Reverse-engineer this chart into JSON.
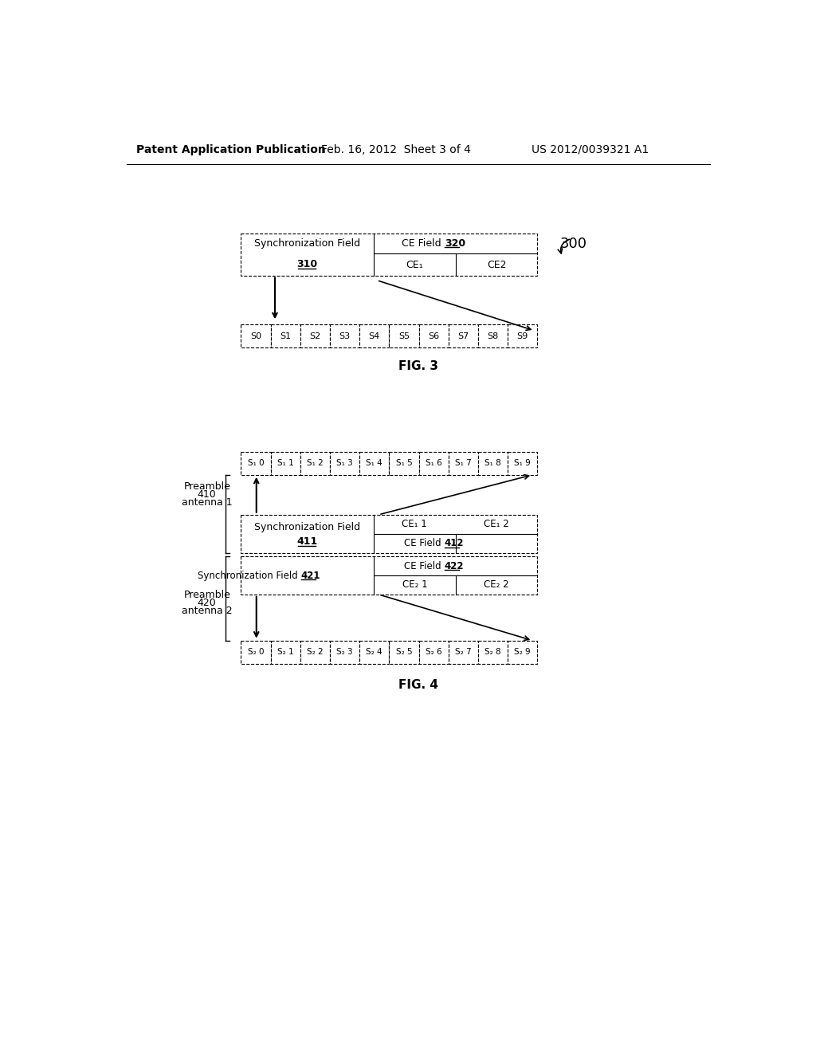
{
  "bg_color": "#ffffff",
  "header_text": "Patent Application Publication",
  "header_date": "Feb. 16, 2012  Sheet 3 of 4",
  "header_ref": "US 2012/0039321 A1",
  "fig3_label": "300",
  "fig3_sync_label": "Synchronization Field",
  "fig3_sync_num": "310",
  "fig3_ce_field_label": "CE Field",
  "fig3_ce_field_num": "320",
  "fig3_ce1": "CE₁",
  "fig3_ce2": "CE2",
  "fig3_slots": [
    "S0",
    "S1",
    "S2",
    "S3",
    "S4",
    "S5",
    "S6",
    "S7",
    "S8",
    "S9"
  ],
  "fig3_caption": "FIG. 3",
  "fig4_top_slots": [
    "S₁ 0",
    "S₁ 1",
    "S₁ 2",
    "S₁ 3",
    "S₁ 4",
    "S₁ 5",
    "S₁ 6",
    "S₁ 7",
    "S₁ 8",
    "S₁ 9"
  ],
  "fig4_preamble1_line1": "Preamble",
  "fig4_preamble1_line2": "410",
  "fig4_preamble1_line3": "antenna 1",
  "fig4_sync1_label": "Synchronization Field",
  "fig4_sync1_num": "411",
  "fig4_ce1_field_label": "CE Field",
  "fig4_ce1_field_num": "412",
  "fig4_ce1_1": "CE₁ 1",
  "fig4_ce1_2": "CE₁ 2",
  "fig4_preamble2_line1": "Preamble",
  "fig4_preamble2_line2": "420",
  "fig4_preamble2_line3": "antenna 2",
  "fig4_sync2_label": "Synchronization Field",
  "fig4_sync2_num": "421",
  "fig4_ce2_field_label": "CE Field",
  "fig4_ce2_field_num": "422",
  "fig4_ce2_1": "CE₂ 1",
  "fig4_ce2_2": "CE₂ 2",
  "fig4_bot_slots": [
    "S₂ 0",
    "S₂ 1",
    "S₂ 2",
    "S₂ 3",
    "S₂ 4",
    "S₂ 5",
    "S₂ 6",
    "S₂ 7",
    "S₂ 8",
    "S₂ 9"
  ],
  "fig4_caption": "FIG. 4"
}
